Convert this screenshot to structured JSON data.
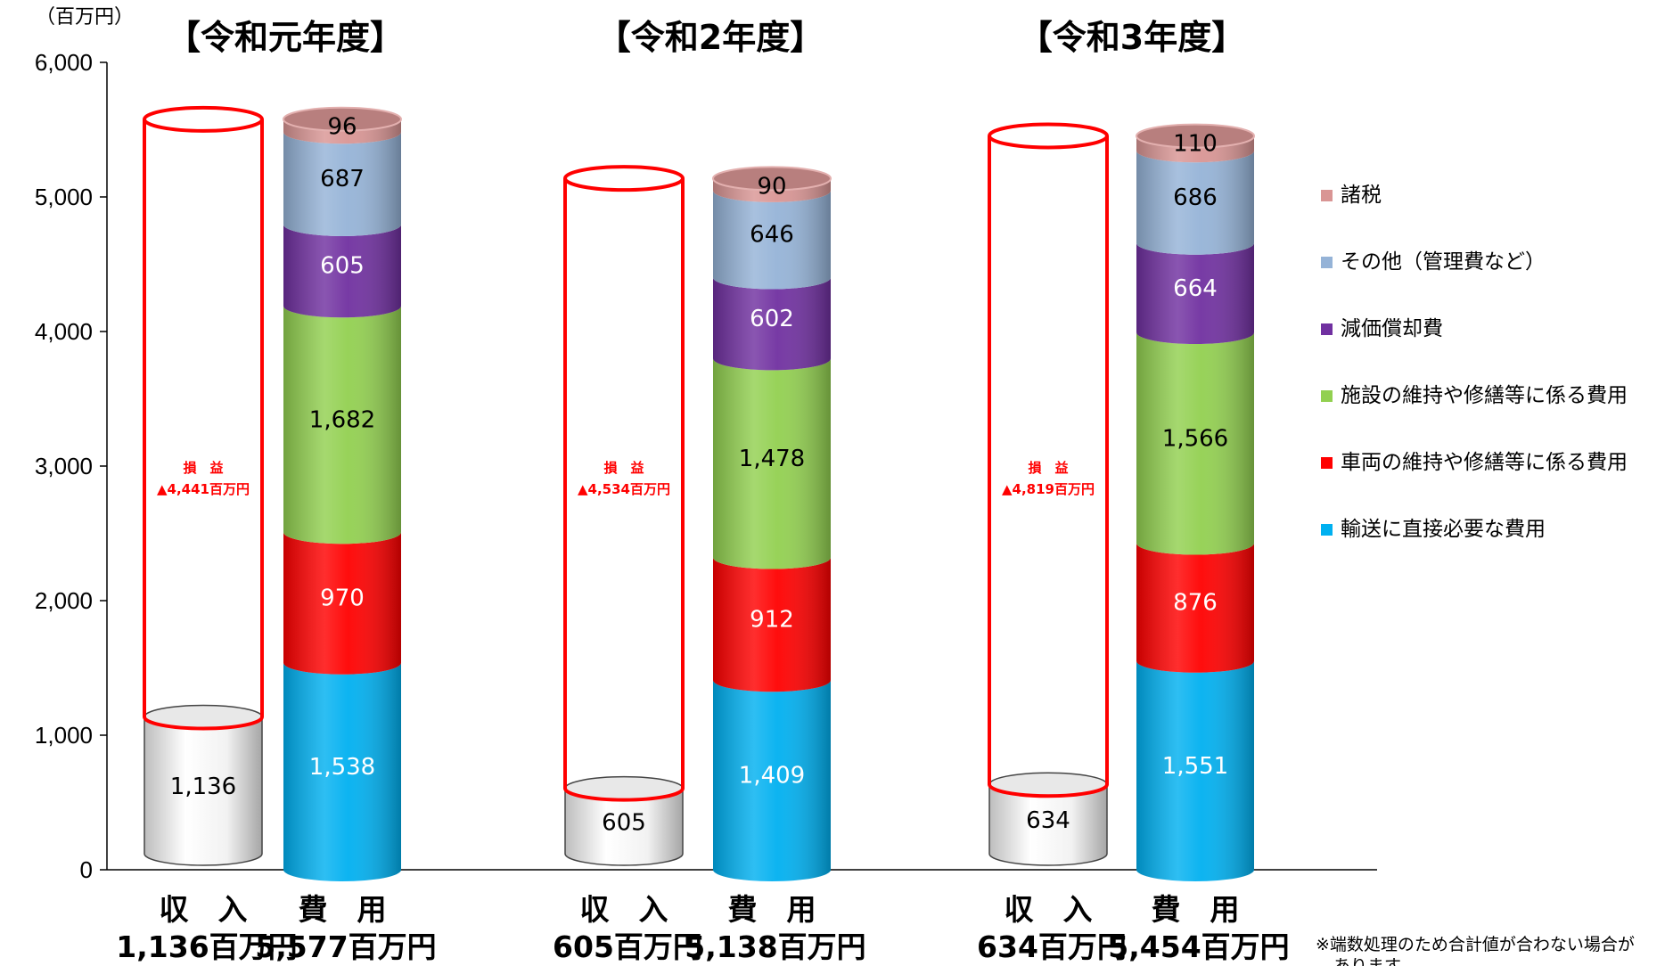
{
  "chart_data": {
    "type": "bar",
    "unit_label": "（百万円）",
    "ylim": [
      0,
      6000
    ],
    "yticks": [
      "0",
      "1,000",
      "2,000",
      "3,000",
      "4,000",
      "5,000",
      "6,000"
    ],
    "legend_position": "right",
    "series": [
      {
        "name": "輸送に直接必要な費用",
        "color": "#00b0f0",
        "label_color": "#ffffff"
      },
      {
        "name": "車両の維持や修繕等に係る費用",
        "color": "#ff0000",
        "label_color": "#ffffff"
      },
      {
        "name": "施設の維持や修繕等に係る費用",
        "color": "#92d050",
        "label_color": "#000000"
      },
      {
        "name": "減価償却費",
        "color": "#7030a0",
        "label_color": "#ffffff"
      },
      {
        "name": "その他（管理費など）",
        "color": "#95b3d7",
        "label_color": "#000000"
      },
      {
        "name": "諸税",
        "color": "#d99594",
        "label_color": "#000000"
      }
    ],
    "legend_order": [
      5,
      4,
      3,
      2,
      1,
      0
    ],
    "years": [
      {
        "title": "【令和元年度】",
        "income": 1136,
        "income_label": "1,136",
        "expense_values": [
          1538,
          970,
          1682,
          605,
          687,
          96
        ],
        "expense_labels": [
          "1,538",
          "970",
          "1,682",
          "605",
          "687",
          "96"
        ],
        "expense_total": 5577,
        "loss_title": "損　益",
        "loss_value": "▲4,441百万円",
        "income_caption": "収　入",
        "expense_caption": "費　用",
        "income_total_text": "1,136百万円",
        "expense_total_text": "5,577百万円"
      },
      {
        "title": "【令和2年度】",
        "income": 605,
        "income_label": "605",
        "expense_values": [
          1409,
          912,
          1478,
          602,
          646,
          90
        ],
        "expense_labels": [
          "1,409",
          "912",
          "1,478",
          "602",
          "646",
          "90"
        ],
        "expense_total": 5138,
        "loss_title": "損　益",
        "loss_value": "▲4,534百万円",
        "income_caption": "収　入",
        "expense_caption": "費　用",
        "income_total_text": "605百万円",
        "expense_total_text": "5,138百万円"
      },
      {
        "title": "【令和3年度】",
        "income": 634,
        "income_label": "634",
        "expense_values": [
          1551,
          876,
          1566,
          664,
          686,
          110
        ],
        "expense_labels": [
          "1,551",
          "876",
          "1,566",
          "664",
          "686",
          "110"
        ],
        "expense_total": 5454,
        "loss_title": "損　益",
        "loss_value": "▲4,819百万円",
        "income_caption": "収　入",
        "expense_caption": "費　用",
        "income_total_text": "634百万円",
        "expense_total_text": "5,454百万円"
      }
    ],
    "note": "※端数処理のため合計値が合わない場合が",
    "note_cont": "あります"
  }
}
